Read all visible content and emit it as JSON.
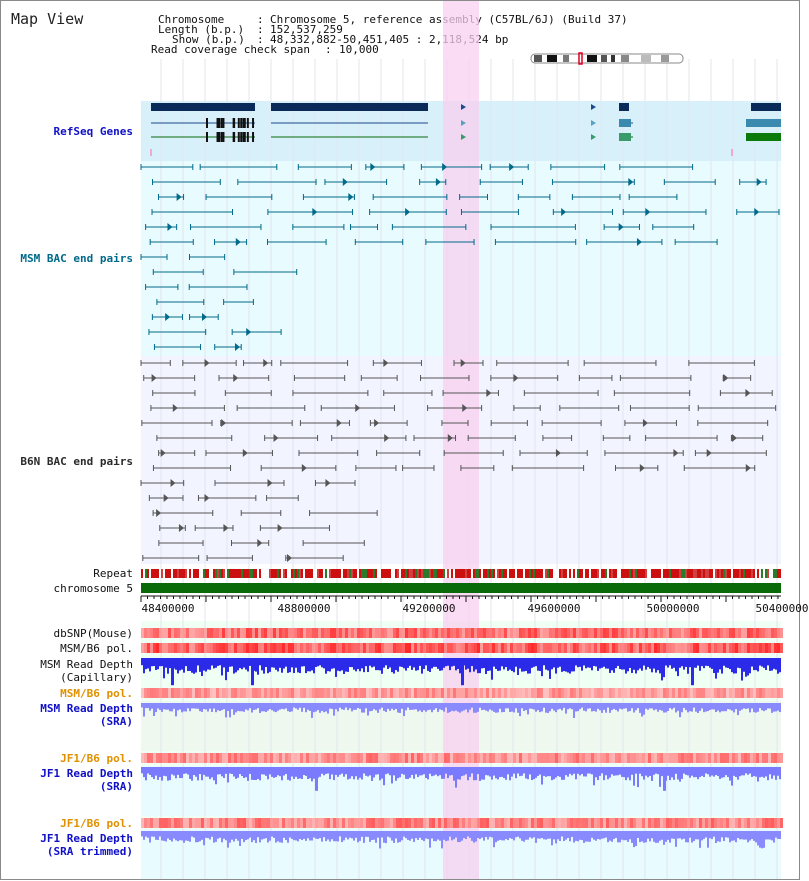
{
  "view_title": "Map View",
  "info": {
    "chromosome_key": "Chromosome",
    "chromosome_value": "Chromosome 5, reference assembly (C57BL/6J) (Build 37)",
    "length_key": "Length (b.p.)",
    "length_value": "152,537,259",
    "show_key": "Show (b.p.)",
    "show_value": "48,332,882-50,451,405 : 2,118,524 bp",
    "coverage_key": "Read coverage check span",
    "coverage_value": "10,000"
  },
  "tracks": {
    "refseq": "RefSeq Genes",
    "msm_bac": "MSM BAC end pairs",
    "b6n_bac": "B6N BAC end pairs",
    "repeat": "Repeat",
    "chromosome": "chromosome 5",
    "dbsnp": "dbSNP(Mouse)",
    "msm_b6_pol": "MSM/B6 pol.",
    "msm_depth_cap_1": "MSM Read Depth",
    "msm_depth_cap_2": "(Capillary)",
    "msm_b6_pol_2": "MSM/B6 pol.",
    "msm_depth_sra_1": "MSM Read Depth",
    "msm_depth_sra_2": "(SRA)",
    "jf1_b6_pol": "JF1/B6 pol.",
    "jf1_depth_sra_1": "JF1 Read Depth",
    "jf1_depth_sra_2": "(SRA)",
    "jf1_b6_pol_2": "JF1/B6 pol.",
    "jf1_depth_trim_1": "JF1 Read Depth",
    "jf1_depth_trim_2": "(SRA trimmed)"
  },
  "axis_ticks": [
    "48400000",
    "48800000",
    "49200000",
    "49600000",
    "50000000",
    "50400000"
  ],
  "colors": {
    "refseq_bg": "#d8f0fa",
    "msm_bg": "#e8fbff",
    "b6n_bg": "#f2f4ff",
    "highlight": "#f8d0f0",
    "gene": "#0a2a5a",
    "msm_pair": "#006a8a",
    "b6n_pair": "#555555",
    "chromosome": "#0a6a0a",
    "repeat_red": "#cc1010",
    "depth_blue": "#2a2ae8",
    "depth_light": "#7a7aff",
    "pol_red": "#ee3030"
  }
}
